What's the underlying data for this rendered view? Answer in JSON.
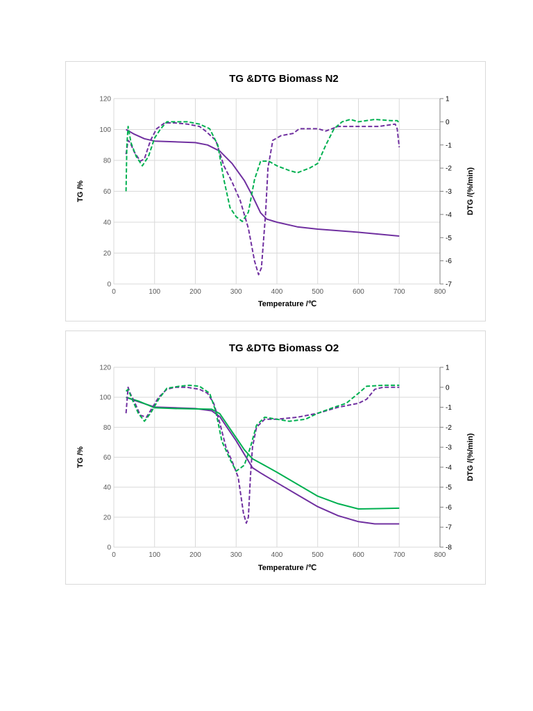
{
  "colors": {
    "purple": "#7030a0",
    "green": "#00b050",
    "grid": "#d9d9d9"
  },
  "chart_data": [
    {
      "type": "line",
      "title": "TG &DTG Biomass N2",
      "xlabel": "Temperature /℃",
      "ylabel": "TG /%",
      "y2label": "DTG /(%/min)",
      "xlim": [
        0,
        800
      ],
      "ylim": [
        0,
        120
      ],
      "y2lim": [
        -7,
        1
      ],
      "xticks": [
        "0",
        "100",
        "200",
        "300",
        "400",
        "500",
        "600",
        "700",
        "800"
      ],
      "yticks": [
        "0",
        "20",
        "40",
        "60",
        "80",
        "100",
        "120"
      ],
      "y2ticks": [
        "-7",
        "-6",
        "-5",
        "-4",
        "-3",
        "-2",
        "-1",
        "0",
        "1"
      ],
      "grid": true,
      "series": [
        {
          "name": "TG purple",
          "axis": "left",
          "color": "#7030a0",
          "dash": false,
          "points": [
            [
              30,
              100
            ],
            [
              50,
              97
            ],
            [
              75,
              94
            ],
            [
              100,
              92.5
            ],
            [
              150,
              92
            ],
            [
              200,
              91.5
            ],
            [
              230,
              90
            ],
            [
              260,
              86
            ],
            [
              290,
              78
            ],
            [
              320,
              67
            ],
            [
              340,
              57
            ],
            [
              360,
              46
            ],
            [
              375,
              42
            ],
            [
              400,
              40
            ],
            [
              450,
              37
            ],
            [
              500,
              35.5
            ],
            [
              600,
              33.5
            ],
            [
              700,
              31
            ]
          ]
        },
        {
          "name": "DTG purple",
          "axis": "right",
          "color": "#7030a0",
          "dash": true,
          "points": [
            [
              30,
              -1.4
            ],
            [
              35,
              -0.8
            ],
            [
              40,
              -0.9
            ],
            [
              50,
              -1.3
            ],
            [
              65,
              -1.7
            ],
            [
              75,
              -1.6
            ],
            [
              90,
              -0.8
            ],
            [
              105,
              -0.3
            ],
            [
              125,
              -0.05
            ],
            [
              150,
              -0.05
            ],
            [
              180,
              -0.1
            ],
            [
              210,
              -0.2
            ],
            [
              225,
              -0.4
            ],
            [
              250,
              -0.8
            ],
            [
              270,
              -1.9
            ],
            [
              290,
              -2.6
            ],
            [
              310,
              -3.4
            ],
            [
              330,
              -4.6
            ],
            [
              345,
              -6.0
            ],
            [
              355,
              -6.6
            ],
            [
              362,
              -6.3
            ],
            [
              372,
              -4.0
            ],
            [
              378,
              -2.0
            ],
            [
              390,
              -0.8
            ],
            [
              410,
              -0.6
            ],
            [
              440,
              -0.5
            ],
            [
              455,
              -0.3
            ],
            [
              480,
              -0.3
            ],
            [
              500,
              -0.3
            ],
            [
              520,
              -0.4
            ],
            [
              550,
              -0.2
            ],
            [
              600,
              -0.2
            ],
            [
              650,
              -0.2
            ],
            [
              690,
              -0.1
            ],
            [
              695,
              -0.3
            ],
            [
              700,
              -1.1
            ]
          ]
        },
        {
          "name": "DTG green",
          "axis": "right",
          "color": "#00b050",
          "dash": true,
          "points": [
            [
              30,
              -3
            ],
            [
              32,
              -1
            ],
            [
              35,
              -0.2
            ],
            [
              42,
              -0.9
            ],
            [
              55,
              -1.5
            ],
            [
              70,
              -1.9
            ],
            [
              85,
              -1.5
            ],
            [
              100,
              -0.7
            ],
            [
              115,
              -0.3
            ],
            [
              130,
              0
            ],
            [
              150,
              0
            ],
            [
              180,
              0
            ],
            [
              210,
              -0.1
            ],
            [
              235,
              -0.3
            ],
            [
              255,
              -1
            ],
            [
              270,
              -2.5
            ],
            [
              285,
              -3.7
            ],
            [
              300,
              -4.1
            ],
            [
              315,
              -4.3
            ],
            [
              330,
              -3.9
            ],
            [
              345,
              -2.5
            ],
            [
              360,
              -1.7
            ],
            [
              380,
              -1.7
            ],
            [
              400,
              -1.9
            ],
            [
              430,
              -2.1
            ],
            [
              450,
              -2.2
            ],
            [
              480,
              -2.0
            ],
            [
              500,
              -1.8
            ],
            [
              520,
              -1.0
            ],
            [
              540,
              -0.3
            ],
            [
              560,
              0
            ],
            [
              580,
              0.1
            ],
            [
              600,
              0
            ],
            [
              640,
              0.1
            ],
            [
              680,
              0.05
            ],
            [
              695,
              0.05
            ],
            [
              700,
              -0.05
            ]
          ]
        }
      ]
    },
    {
      "type": "line",
      "title": "TG &DTG Biomass O2",
      "xlabel": "Temperature /℃",
      "ylabel": "TG /%",
      "y2label": "DTG /(%/min)",
      "xlim": [
        0,
        800
      ],
      "ylim": [
        0,
        120
      ],
      "y2lim": [
        -8,
        1
      ],
      "xticks": [
        "0",
        "100",
        "200",
        "300",
        "400",
        "500",
        "600",
        "700",
        "800"
      ],
      "yticks": [
        "0",
        "20",
        "40",
        "60",
        "80",
        "100",
        "120"
      ],
      "y2ticks": [
        "-8",
        "-7",
        "-6",
        "-5",
        "-4",
        "-3",
        "-2",
        "-1",
        "0",
        "1"
      ],
      "grid": true,
      "series": [
        {
          "name": "TG purple",
          "axis": "left",
          "color": "#7030a0",
          "dash": false,
          "points": [
            [
              30,
              100
            ],
            [
              60,
              97
            ],
            [
              100,
              93.5
            ],
            [
              150,
              93
            ],
            [
              200,
              92.5
            ],
            [
              240,
              91
            ],
            [
              260,
              87
            ],
            [
              280,
              79
            ],
            [
              300,
              71
            ],
            [
              320,
              62
            ],
            [
              340,
              53
            ],
            [
              360,
              49.5
            ],
            [
              400,
              43
            ],
            [
              450,
              35
            ],
            [
              500,
              27
            ],
            [
              550,
              21
            ],
            [
              600,
              17
            ],
            [
              640,
              15.5
            ],
            [
              700,
              15.5
            ]
          ]
        },
        {
          "name": "TG green",
          "axis": "left",
          "color": "#00b050",
          "dash": false,
          "points": [
            [
              30,
              100
            ],
            [
              60,
              97.5
            ],
            [
              100,
              93
            ],
            [
              150,
              92.5
            ],
            [
              240,
              92
            ],
            [
              260,
              89
            ],
            [
              280,
              81
            ],
            [
              300,
              73
            ],
            [
              320,
              65
            ],
            [
              340,
              59
            ],
            [
              360,
              56
            ],
            [
              400,
              50
            ],
            [
              450,
              42
            ],
            [
              500,
              34
            ],
            [
              550,
              29
            ],
            [
              600,
              25.5
            ],
            [
              650,
              25.7
            ],
            [
              700,
              26
            ]
          ]
        },
        {
          "name": "DTG purple",
          "axis": "right",
          "color": "#7030a0",
          "dash": true,
          "points": [
            [
              30,
              -1.3
            ],
            [
              35,
              0
            ],
            [
              40,
              -0.3
            ],
            [
              50,
              -0.7
            ],
            [
              65,
              -1.4
            ],
            [
              80,
              -1.5
            ],
            [
              95,
              -1.0
            ],
            [
              110,
              -0.5
            ],
            [
              130,
              -0.1
            ],
            [
              150,
              0
            ],
            [
              180,
              0
            ],
            [
              210,
              -0.1
            ],
            [
              230,
              -0.3
            ],
            [
              245,
              -0.8
            ],
            [
              260,
              -1.8
            ],
            [
              275,
              -3.0
            ],
            [
              290,
              -3.7
            ],
            [
              305,
              -4.5
            ],
            [
              318,
              -6.3
            ],
            [
              325,
              -6.8
            ],
            [
              330,
              -6.5
            ],
            [
              335,
              -4.5
            ],
            [
              340,
              -3.0
            ],
            [
              350,
              -2.0
            ],
            [
              370,
              -1.6
            ],
            [
              400,
              -1.6
            ],
            [
              450,
              -1.5
            ],
            [
              500,
              -1.3
            ],
            [
              550,
              -1.0
            ],
            [
              600,
              -0.8
            ],
            [
              620,
              -0.6
            ],
            [
              640,
              -0.1
            ],
            [
              660,
              0
            ],
            [
              700,
              0
            ]
          ]
        },
        {
          "name": "DTG green",
          "axis": "right",
          "color": "#00b050",
          "dash": true,
          "points": [
            [
              30,
              -0.2
            ],
            [
              35,
              -0.1
            ],
            [
              45,
              -0.6
            ],
            [
              60,
              -1.3
            ],
            [
              75,
              -1.7
            ],
            [
              90,
              -1.3
            ],
            [
              110,
              -0.6
            ],
            [
              130,
              -0.05
            ],
            [
              160,
              0.05
            ],
            [
              185,
              0.1
            ],
            [
              210,
              0.05
            ],
            [
              235,
              -0.3
            ],
            [
              250,
              -1.2
            ],
            [
              265,
              -2.7
            ],
            [
              285,
              -3.6
            ],
            [
              300,
              -4.2
            ],
            [
              320,
              -3.9
            ],
            [
              335,
              -3.0
            ],
            [
              350,
              -1.9
            ],
            [
              370,
              -1.5
            ],
            [
              400,
              -1.6
            ],
            [
              430,
              -1.7
            ],
            [
              470,
              -1.6
            ],
            [
              500,
              -1.3
            ],
            [
              540,
              -1.0
            ],
            [
              570,
              -0.8
            ],
            [
              600,
              -0.3
            ],
            [
              620,
              0.05
            ],
            [
              660,
              0.1
            ],
            [
              700,
              0.1
            ]
          ]
        }
      ]
    }
  ]
}
